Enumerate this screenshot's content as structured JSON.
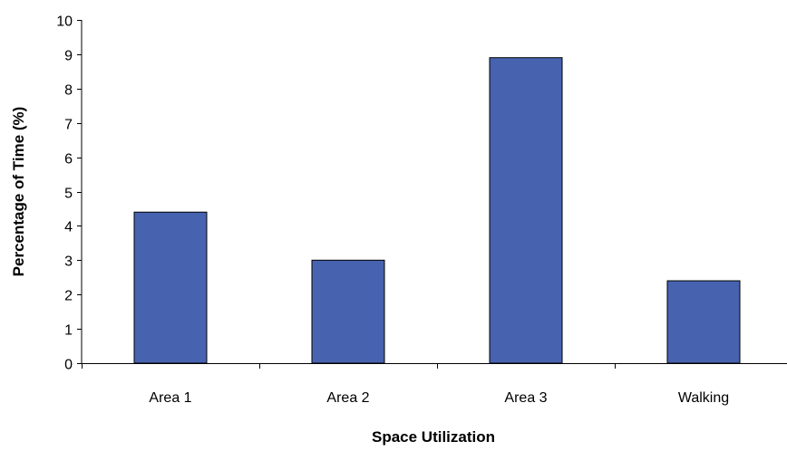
{
  "chart_data": {
    "type": "bar",
    "categories": [
      "Area 1",
      "Area 2",
      "Area 3",
      "Walking"
    ],
    "values": [
      4.4,
      3.0,
      8.9,
      2.4
    ],
    "xlabel": "Space Utilization",
    "ylabel": "Percentage of Time (%)",
    "ylim": [
      0,
      10
    ],
    "yticks": [
      0,
      1,
      2,
      3,
      4,
      5,
      6,
      7,
      8,
      9,
      10
    ],
    "grid": false,
    "legend": "none",
    "bar_color": "#4763b0"
  }
}
